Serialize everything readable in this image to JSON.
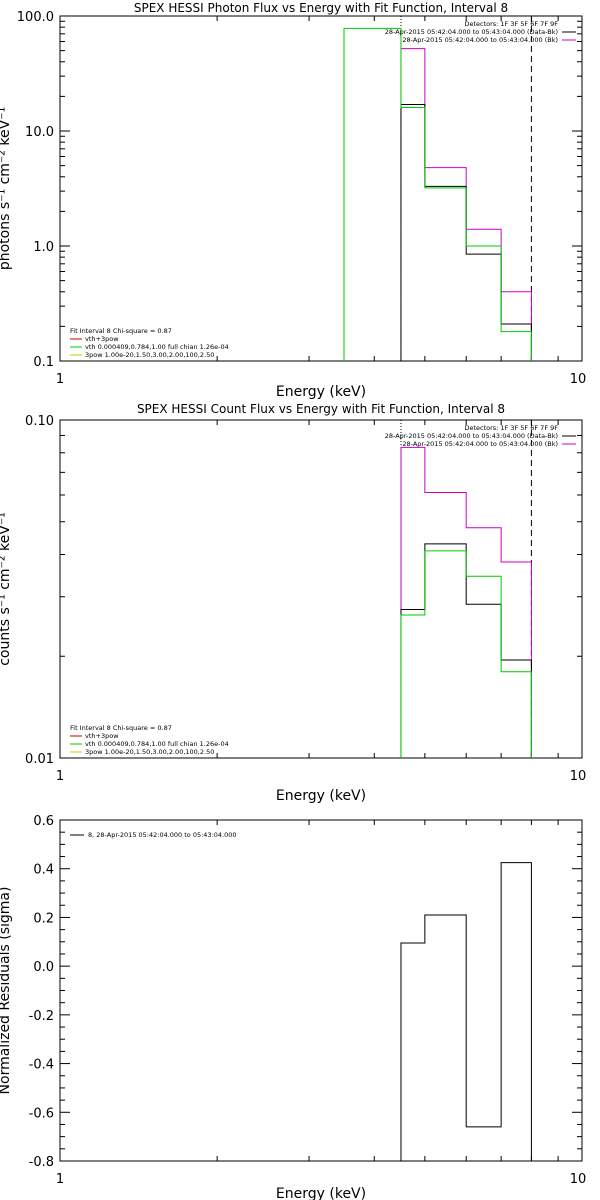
{
  "chart_data": [
    {
      "type": "line",
      "title": "SPEX HESSI Photon Flux vs Energy with Fit Function, Interval 8",
      "xlabel": "Energy (keV)",
      "ylabel": "photons s⁻¹ cm⁻² keV⁻¹",
      "xscale": "log",
      "yscale": "log",
      "xlim": [
        1,
        10
      ],
      "ylim": [
        0.1,
        100
      ],
      "x_tick_labels": [
        "1",
        "10"
      ],
      "y_tick_labels": [
        "0.1",
        "1.0",
        "10.0",
        "100.0"
      ],
      "vlines": [
        {
          "x": 4.5,
          "style": "dotted",
          "color": "#000000"
        },
        {
          "x": 8.0,
          "style": "dashed",
          "color": "#000000"
        }
      ],
      "legend_top_right": [
        {
          "text": "Detectors: 1F 3F 5F 6F 7F 9F",
          "color": ""
        },
        {
          "text": "28-Apr-2015 05:42:04.000 to 05:43:04.000 (Data-Bk)",
          "color": "#000000"
        },
        {
          "text": "28-Apr-2015 05:42:04.000 to 05:43:04.000 (Bk)",
          "color": "#cc00cc"
        }
      ],
      "legend_bottom_left": [
        {
          "text": "Fit Interval 8   Chi-square = 0.87",
          "color": ""
        },
        {
          "text": "vth+3pow",
          "color": "#cc0000"
        },
        {
          "text": "vth 0.000409,0.784,1.00  full chian 1.26e-04",
          "color": "#00cc00"
        },
        {
          "text": "3pow 1.00e-20,1.50,3.00,2.00,100,2.50",
          "color": "#cccc00"
        }
      ],
      "series": [
        {
          "color": "#cc00cc",
          "bins": [
            4.5,
            5.0,
            6.0,
            7.0,
            8.0
          ],
          "values": [
            52,
            4.8,
            1.4,
            0.4
          ]
        },
        {
          "color": "#000000",
          "bins": [
            4.5,
            5.0,
            6.0,
            7.0,
            8.0
          ],
          "values": [
            17,
            3.3,
            0.85,
            0.21
          ]
        },
        {
          "color": "#00cc00",
          "bins": [
            3.5,
            4.5,
            5.0,
            6.0,
            7.0,
            8.0
          ],
          "values": [
            78,
            16,
            3.2,
            1.0,
            0.18
          ]
        }
      ]
    },
    {
      "type": "line",
      "title": "SPEX HESSI Count Flux vs Energy with Fit Function, Interval 8",
      "xlabel": "Energy (keV)",
      "ylabel": "counts s⁻¹ cm⁻² keV⁻¹",
      "xscale": "log",
      "yscale": "log",
      "xlim": [
        1,
        10
      ],
      "ylim": [
        0.01,
        0.1
      ],
      "x_tick_labels": [
        "1",
        "10"
      ],
      "y_tick_labels": [
        "0.01",
        "0.10"
      ],
      "vlines": [
        {
          "x": 4.5,
          "style": "dotted",
          "color": "#000000"
        },
        {
          "x": 8.0,
          "style": "dashed",
          "color": "#000000"
        }
      ],
      "legend_top_right": [
        {
          "text": "Detectors: 1F 3F 5F 6F 7F 9F",
          "color": ""
        },
        {
          "text": "28-Apr-2015 05:42:04.000 to 05:43:04.000 (Data-Bk)",
          "color": "#000000"
        },
        {
          "text": "28-Apr-2015 05:42:04.000 to 05:43:04.000 (Bk)",
          "color": "#cc00cc"
        }
      ],
      "legend_bottom_left": [
        {
          "text": "Fit Interval 8   Chi-square = 0.87",
          "color": ""
        },
        {
          "text": "vth+3pow",
          "color": "#cc0000"
        },
        {
          "text": "vth 0.000409,0.784,1.00  full chian 1.26e-04",
          "color": "#00cc00"
        },
        {
          "text": "3pow 1.00e-20,1.50,3.00,2.00,100,2.50",
          "color": "#cccc00"
        }
      ],
      "series": [
        {
          "color": "#cc00cc",
          "bins": [
            4.5,
            5.0,
            6.0,
            7.0,
            8.0
          ],
          "values": [
            0.083,
            0.061,
            0.048,
            0.038
          ]
        },
        {
          "color": "#000000",
          "bins": [
            4.5,
            5.0,
            6.0,
            7.0,
            8.0
          ],
          "values": [
            0.0275,
            0.043,
            0.0285,
            0.0195
          ]
        },
        {
          "color": "#00cc00",
          "bins": [
            4.5,
            5.0,
            6.0,
            7.0,
            8.0
          ],
          "values": [
            0.0265,
            0.041,
            0.0345,
            0.018
          ]
        }
      ]
    },
    {
      "type": "line",
      "title": "",
      "xlabel": "Energy (keV)",
      "ylabel": "Normalized Residuals (sigma)",
      "xscale": "log",
      "yscale": "linear",
      "xlim": [
        1,
        10
      ],
      "ylim": [
        -0.8,
        0.6
      ],
      "x_tick_labels": [
        "1",
        "10"
      ],
      "y_tick_labels": [
        "0.6",
        "0.4",
        "0.2",
        "0.0",
        "-0.2",
        "-0.4",
        "-0.6",
        "-0.8"
      ],
      "legend_top_left": [
        {
          "text": "8, 28-Apr-2015 05:42:04.000 to 05:43:04.000",
          "color": "#000000"
        }
      ],
      "series": [
        {
          "color": "#000000",
          "bins": [
            4.5,
            5.0,
            6.0,
            7.0,
            8.0
          ],
          "values": [
            0.095,
            0.21,
            -0.66,
            0.425
          ]
        }
      ]
    }
  ]
}
